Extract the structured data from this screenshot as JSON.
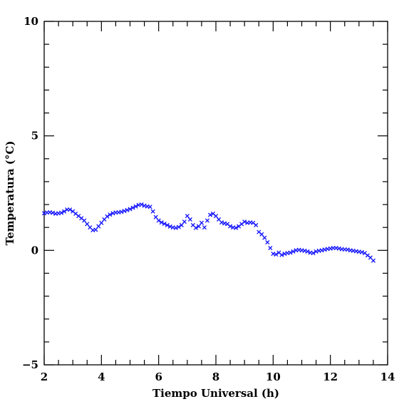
{
  "chart_data": {
    "type": "scatter",
    "title": "",
    "xlabel": "Tiempo Universal (h)",
    "ylabel": "Temperatura (°C)",
    "xlim": [
      2,
      14
    ],
    "ylim": [
      -5,
      10
    ],
    "xticks": [
      2,
      4,
      6,
      8,
      10,
      12,
      14
    ],
    "xtick_labels": [
      "2",
      "4",
      "6",
      "8",
      "10",
      "12",
      "14"
    ],
    "yticks": [
      -5,
      0,
      5,
      10
    ],
    "ytick_labels": [
      "−5",
      "0",
      "5",
      "10"
    ],
    "grid": false,
    "marker_color": "#1010ff",
    "marker": "x",
    "series": [
      {
        "points": [
          [
            2.0,
            1.62
          ],
          [
            2.1,
            1.65
          ],
          [
            2.2,
            1.66
          ],
          [
            2.3,
            1.64
          ],
          [
            2.4,
            1.6
          ],
          [
            2.5,
            1.62
          ],
          [
            2.6,
            1.64
          ],
          [
            2.7,
            1.7
          ],
          [
            2.8,
            1.78
          ],
          [
            2.9,
            1.78
          ],
          [
            3.0,
            1.7
          ],
          [
            3.1,
            1.6
          ],
          [
            3.2,
            1.5
          ],
          [
            3.3,
            1.4
          ],
          [
            3.4,
            1.3
          ],
          [
            3.5,
            1.15
          ],
          [
            3.6,
            1.0
          ],
          [
            3.7,
            0.88
          ],
          [
            3.8,
            0.9
          ],
          [
            3.9,
            1.05
          ],
          [
            4.0,
            1.2
          ],
          [
            4.1,
            1.35
          ],
          [
            4.2,
            1.48
          ],
          [
            4.3,
            1.56
          ],
          [
            4.4,
            1.62
          ],
          [
            4.5,
            1.65
          ],
          [
            4.6,
            1.66
          ],
          [
            4.7,
            1.68
          ],
          [
            4.8,
            1.72
          ],
          [
            4.9,
            1.76
          ],
          [
            5.0,
            1.8
          ],
          [
            5.1,
            1.86
          ],
          [
            5.2,
            1.92
          ],
          [
            5.3,
            1.98
          ],
          [
            5.4,
            2.0
          ],
          [
            5.5,
            1.95
          ],
          [
            5.6,
            1.92
          ],
          [
            5.7,
            1.9
          ],
          [
            5.8,
            1.7
          ],
          [
            5.9,
            1.45
          ],
          [
            6.0,
            1.3
          ],
          [
            6.1,
            1.22
          ],
          [
            6.2,
            1.16
          ],
          [
            6.3,
            1.1
          ],
          [
            6.4,
            1.04
          ],
          [
            6.5,
            1.0
          ],
          [
            6.6,
            0.98
          ],
          [
            6.7,
            1.02
          ],
          [
            6.8,
            1.1
          ],
          [
            6.9,
            1.25
          ],
          [
            7.0,
            1.5
          ],
          [
            7.1,
            1.35
          ],
          [
            7.2,
            1.1
          ],
          [
            7.3,
            0.98
          ],
          [
            7.4,
            1.05
          ],
          [
            7.5,
            1.2
          ],
          [
            7.6,
            1.0
          ],
          [
            7.7,
            1.3
          ],
          [
            7.8,
            1.55
          ],
          [
            7.9,
            1.6
          ],
          [
            8.0,
            1.5
          ],
          [
            8.1,
            1.35
          ],
          [
            8.2,
            1.22
          ],
          [
            8.3,
            1.18
          ],
          [
            8.4,
            1.15
          ],
          [
            8.5,
            1.05
          ],
          [
            8.6,
            1.0
          ],
          [
            8.7,
            0.98
          ],
          [
            8.8,
            1.05
          ],
          [
            8.9,
            1.15
          ],
          [
            9.0,
            1.25
          ],
          [
            9.1,
            1.2
          ],
          [
            9.2,
            1.22
          ],
          [
            9.3,
            1.2
          ],
          [
            9.4,
            1.1
          ],
          [
            9.5,
            0.8
          ],
          [
            9.6,
            0.7
          ],
          [
            9.7,
            0.55
          ],
          [
            9.8,
            0.35
          ],
          [
            9.9,
            0.1
          ],
          [
            10.0,
            -0.15
          ],
          [
            10.1,
            -0.18
          ],
          [
            10.2,
            -0.1
          ],
          [
            10.3,
            -0.2
          ],
          [
            10.4,
            -0.15
          ],
          [
            10.5,
            -0.12
          ],
          [
            10.6,
            -0.1
          ],
          [
            10.7,
            -0.05
          ],
          [
            10.8,
            0.0
          ],
          [
            10.9,
            0.02
          ],
          [
            11.0,
            0.0
          ],
          [
            11.1,
            -0.02
          ],
          [
            11.2,
            -0.05
          ],
          [
            11.3,
            -0.1
          ],
          [
            11.4,
            -0.12
          ],
          [
            11.5,
            -0.05
          ],
          [
            11.6,
            -0.02
          ],
          [
            11.7,
            0.0
          ],
          [
            11.8,
            0.03
          ],
          [
            11.9,
            0.06
          ],
          [
            12.0,
            0.08
          ],
          [
            12.1,
            0.1
          ],
          [
            12.2,
            0.1
          ],
          [
            12.3,
            0.08
          ],
          [
            12.4,
            0.05
          ],
          [
            12.5,
            0.04
          ],
          [
            12.6,
            0.03
          ],
          [
            12.7,
            0.0
          ],
          [
            12.8,
            -0.02
          ],
          [
            12.9,
            -0.04
          ],
          [
            13.0,
            -0.06
          ],
          [
            13.1,
            -0.08
          ],
          [
            13.2,
            -0.12
          ],
          [
            13.3,
            -0.22
          ],
          [
            13.4,
            -0.32
          ],
          [
            13.5,
            -0.45
          ]
        ]
      }
    ]
  }
}
